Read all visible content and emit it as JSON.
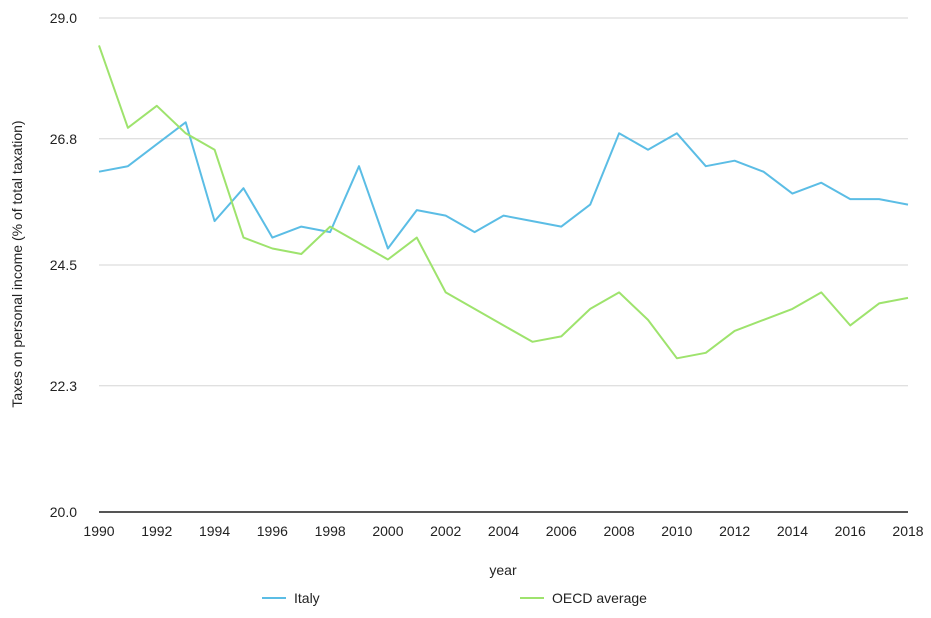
{
  "chart_data": {
    "type": "line",
    "title": "",
    "xlabel": "year",
    "ylabel": "Taxes on personal income (% of total taxation)",
    "xlim": [
      1990,
      2018
    ],
    "ylim": [
      20.0,
      29.0
    ],
    "grid": true,
    "legend_position": "bottom",
    "x_ticks": [
      "1990",
      "1992",
      "1994",
      "1996",
      "1998",
      "2000",
      "2002",
      "2004",
      "2006",
      "2008",
      "2010",
      "2012",
      "2014",
      "2016",
      "2018"
    ],
    "y_ticks": [
      "20.0",
      "22.3",
      "24.5",
      "26.8",
      "29.0"
    ],
    "x": [
      1990,
      1991,
      1992,
      1993,
      1994,
      1995,
      1996,
      1997,
      1998,
      1999,
      2000,
      2001,
      2002,
      2003,
      2004,
      2005,
      2006,
      2007,
      2008,
      2009,
      2010,
      2011,
      2012,
      2013,
      2014,
      2015,
      2016,
      2017,
      2018
    ],
    "series": [
      {
        "name": "Italy",
        "color": "#5bbde5",
        "values": [
          26.2,
          26.3,
          26.7,
          27.1,
          25.3,
          25.9,
          25.0,
          25.2,
          25.1,
          26.3,
          24.8,
          25.5,
          25.4,
          25.1,
          25.4,
          25.3,
          25.2,
          25.6,
          26.9,
          26.6,
          26.9,
          26.3,
          26.4,
          26.2,
          25.8,
          26.0,
          25.7,
          25.7,
          25.6
        ]
      },
      {
        "name": "OECD average",
        "color": "#9ee36d",
        "values": [
          28.5,
          27.0,
          27.4,
          26.9,
          26.6,
          25.0,
          24.8,
          24.7,
          25.2,
          24.9,
          24.6,
          25.0,
          24.0,
          23.7,
          23.4,
          23.1,
          23.2,
          23.7,
          24.0,
          23.5,
          22.8,
          22.9,
          23.3,
          23.5,
          23.7,
          24.0,
          23.4,
          23.8,
          23.9
        ]
      }
    ]
  }
}
